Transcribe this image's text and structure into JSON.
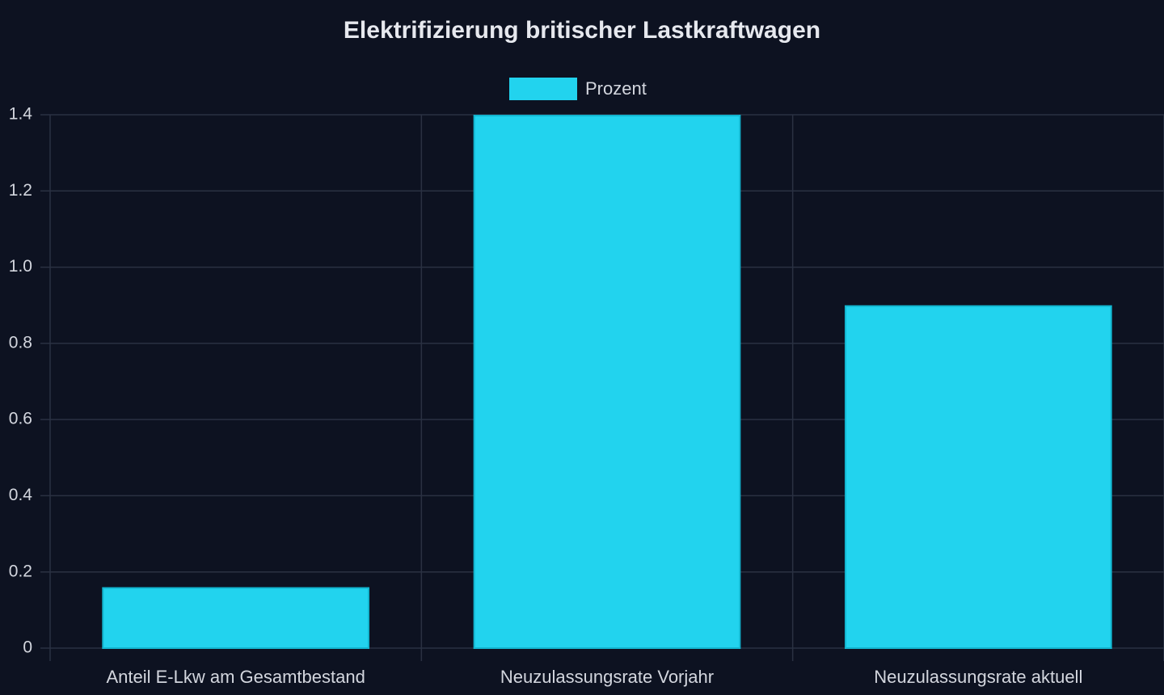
{
  "chart_data": {
    "type": "bar",
    "title": "Elektrifizierung britischer Lastkraftwagen",
    "categories": [
      "Anteil E-Lkw am Gesamtbestand",
      "Neuzulassungsrate Vorjahr",
      "Neuzulassungsrate aktuell"
    ],
    "series": [
      {
        "name": "Prozent",
        "color": "#22d3ee",
        "values": [
          0.16,
          1.4,
          0.9
        ]
      }
    ],
    "ylim": [
      0,
      1.4
    ],
    "yticks": [
      0,
      0.2,
      0.4,
      0.6,
      0.8,
      {
        "value": 1,
        "label": "1.0"
      },
      1.2,
      1.4
    ],
    "grid": true,
    "legend": "top"
  }
}
